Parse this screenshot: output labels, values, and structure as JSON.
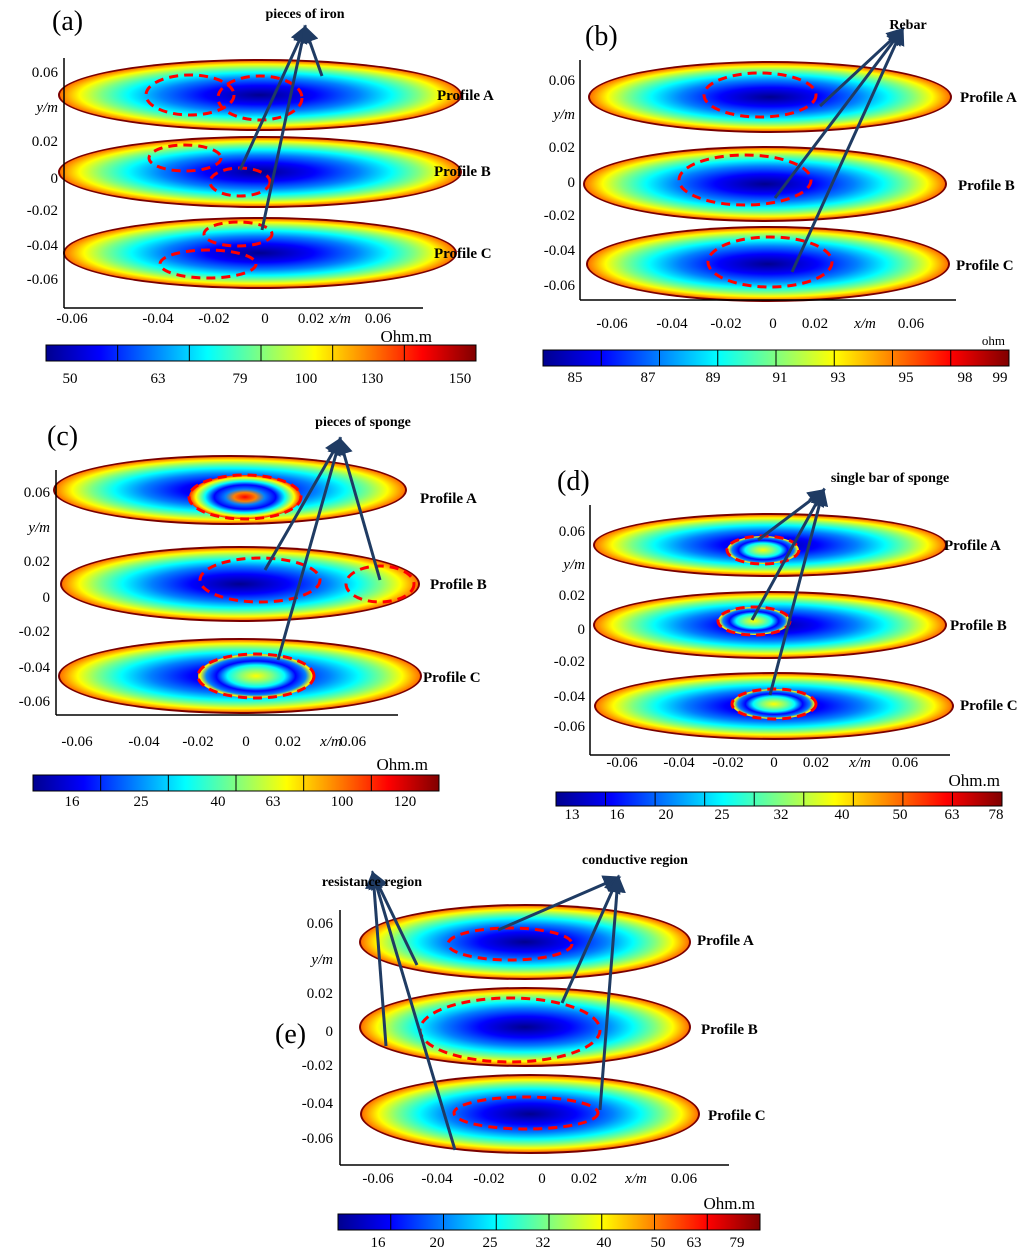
{
  "colors": {
    "jet": [
      "#00008f",
      "#0000ff",
      "#0080ff",
      "#00ffff",
      "#80ff80",
      "#ffff00",
      "#ff8000",
      "#ff0000",
      "#800000"
    ],
    "arrow": "#1f3b63",
    "dashed_ellipse": "#ff0000"
  },
  "panels": [
    {
      "label": "(a)",
      "unit": "Ohm.m",
      "yaxis": {
        "label": "y/m",
        "ticks": [
          "0.06",
          "0.02",
          "0",
          "-0.02",
          "-0.04",
          "-0.06"
        ]
      },
      "xaxis": {
        "label": "x/m",
        "ticks": [
          "-0.06",
          "-0.04",
          "-0.02",
          "0",
          "0.02",
          "0.06"
        ]
      },
      "profiles": [
        "Profile A",
        "Profile B",
        "Profile C"
      ],
      "colorbar_ticks": [
        "50",
        "63",
        "79",
        "100",
        "130",
        "150"
      ],
      "annotations": [
        "pieces of iron"
      ]
    },
    {
      "label": "(b)",
      "unit": "ohm",
      "yaxis": {
        "label": "y/m",
        "ticks": [
          "0.06",
          "0.02",
          "0",
          "-0.02",
          "-0.04",
          "-0.06"
        ]
      },
      "xaxis": {
        "label": "x/m",
        "ticks": [
          "-0.06",
          "-0.04",
          "-0.02",
          "0",
          "0.02",
          "0.06"
        ]
      },
      "profiles": [
        "Profile A",
        "Profile B",
        "Profile C"
      ],
      "colorbar_ticks": [
        "85",
        "87",
        "89",
        "91",
        "93",
        "95",
        "98",
        "99"
      ],
      "annotations": [
        "Rebar"
      ]
    },
    {
      "label": "(c)",
      "unit": "Ohm.m",
      "yaxis": {
        "label": "y/m",
        "ticks": [
          "0.06",
          "0.02",
          "0",
          "-0.02",
          "-0.04",
          "-0.06"
        ]
      },
      "xaxis": {
        "label": "x/m",
        "ticks": [
          "-0.06",
          "-0.04",
          "-0.02",
          "0",
          "0.02",
          "0.06"
        ]
      },
      "profiles": [
        "Profile A",
        "Profile B",
        "Profile C"
      ],
      "colorbar_ticks": [
        "16",
        "25",
        "40",
        "63",
        "100",
        "120"
      ],
      "annotations": [
        "pieces of sponge"
      ]
    },
    {
      "label": "(d)",
      "unit": "Ohm.m",
      "yaxis": {
        "label": "y/m",
        "ticks": [
          "0.06",
          "0.02",
          "0",
          "-0.02",
          "-0.04",
          "-0.06"
        ]
      },
      "xaxis": {
        "label": "x/m",
        "ticks": [
          "-0.06",
          "-0.04",
          "-0.02",
          "0",
          "0.02",
          "0.06"
        ]
      },
      "profiles": [
        "Profile A",
        "Profile B",
        "Profile C"
      ],
      "colorbar_ticks": [
        "13",
        "16",
        "20",
        "25",
        "32",
        "40",
        "50",
        "63",
        "78"
      ],
      "annotations": [
        "single bar of sponge"
      ]
    },
    {
      "label": "(e)",
      "unit": "Ohm.m",
      "yaxis": {
        "label": "y/m",
        "ticks": [
          "0.06",
          "0.02",
          "0",
          "-0.02",
          "-0.04",
          "-0.06"
        ]
      },
      "xaxis": {
        "label": "x/m",
        "ticks": [
          "-0.06",
          "-0.04",
          "-0.02",
          "0",
          "0.02",
          "0.06"
        ]
      },
      "profiles": [
        "Profile A",
        "Profile B",
        "Profile C"
      ],
      "colorbar_ticks": [
        "16",
        "20",
        "25",
        "32",
        "40",
        "50",
        "63",
        "79"
      ],
      "annotations": [
        "resistance region",
        "conductive region"
      ]
    }
  ]
}
